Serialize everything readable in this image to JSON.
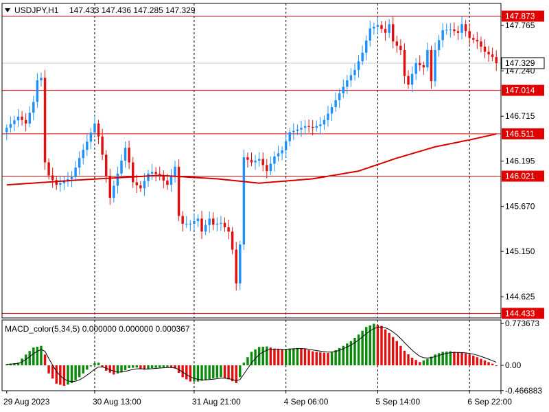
{
  "header": {
    "symbol_label": "USDJPY,H1",
    "ohlc": "147.433 147.436 147.285 147.329"
  },
  "colors": {
    "up": "#1e90ff",
    "down": "#e01010",
    "level_line": "#e00000",
    "ma": "#d40000",
    "bid_line": "#c8c8c8",
    "macd_up": "#0a8a0a",
    "macd_down": "#e01010",
    "signal": "#000000"
  },
  "chart_data": [
    {
      "type": "candlestick",
      "symbol": "USDJPY",
      "timeframe": "H1",
      "ylim": [
        144.38,
        148.02
      ],
      "y_ticks": [
        147.765,
        147.24,
        146.715,
        146.195,
        145.67,
        145.15,
        144.625
      ],
      "current_price": 147.329,
      "levels": [
        147.873,
        147.014,
        146.511,
        146.021,
        144.433
      ],
      "x_labels": [
        "29 Aug 2023",
        "30 Aug 13:00",
        "31 Aug 21:00",
        "4 Sep 06:00",
        "5 Sep 14:00",
        "6 Sep 22:00"
      ],
      "x_label_index": [
        0,
        23,
        49,
        73,
        97,
        121
      ],
      "anchors": [
        [
          0,
          146.58
        ],
        [
          3,
          146.71
        ],
        [
          5,
          146.63
        ],
        [
          7,
          146.88
        ],
        [
          8,
          147.13
        ],
        [
          9,
          147.16
        ],
        [
          10,
          146.18
        ],
        [
          11,
          146.03
        ],
        [
          13,
          145.92
        ],
        [
          15,
          145.96
        ],
        [
          17,
          146.01
        ],
        [
          19,
          146.23
        ],
        [
          21,
          146.42
        ],
        [
          23,
          146.63
        ],
        [
          24,
          146.48
        ],
        [
          25,
          146.27
        ],
        [
          27,
          145.77
        ],
        [
          29,
          146.05
        ],
        [
          31,
          146.35
        ],
        [
          32,
          146.18
        ],
        [
          33,
          145.95
        ],
        [
          35,
          145.88
        ],
        [
          37,
          146.05
        ],
        [
          38,
          146.07
        ],
        [
          40,
          146.02
        ],
        [
          42,
          145.92
        ],
        [
          44,
          146.13
        ],
        [
          45,
          145.56
        ],
        [
          46,
          145.47
        ],
        [
          48,
          145.47
        ],
        [
          50,
          145.53
        ],
        [
          51,
          145.38
        ],
        [
          53,
          145.53
        ],
        [
          54,
          145.46
        ],
        [
          56,
          145.48
        ],
        [
          58,
          145.38
        ],
        [
          59,
          145.17
        ],
        [
          60,
          144.78
        ],
        [
          61,
          145.23
        ],
        [
          62,
          146.24
        ],
        [
          64,
          146.18
        ],
        [
          66,
          146.22
        ],
        [
          68,
          146.08
        ],
        [
          70,
          146.25
        ],
        [
          72,
          146.32
        ],
        [
          74,
          146.53
        ],
        [
          76,
          146.56
        ],
        [
          78,
          146.6
        ],
        [
          80,
          146.58
        ],
        [
          82,
          146.62
        ],
        [
          83,
          146.67
        ],
        [
          85,
          146.82
        ],
        [
          87,
          146.98
        ],
        [
          89,
          147.13
        ],
        [
          91,
          147.25
        ],
        [
          93,
          147.45
        ],
        [
          95,
          147.73
        ],
        [
          97,
          147.77
        ],
        [
          99,
          147.68
        ],
        [
          100,
          147.78
        ],
        [
          101,
          147.58
        ],
        [
          103,
          147.48
        ],
        [
          104,
          147.18
        ],
        [
          105,
          147.08
        ],
        [
          107,
          147.33
        ],
        [
          109,
          147.28
        ],
        [
          110,
          147.48
        ],
        [
          111,
          147.12
        ],
        [
          112,
          147.48
        ],
        [
          114,
          147.71
        ],
        [
          116,
          147.72
        ],
        [
          118,
          147.68
        ],
        [
          119,
          147.78
        ],
        [
          121,
          147.62
        ],
        [
          123,
          147.58
        ],
        [
          125,
          147.46
        ],
        [
          127,
          147.4
        ],
        [
          128,
          147.329
        ]
      ],
      "ma": [
        [
          0,
          145.92
        ],
        [
          20,
          145.98
        ],
        [
          40,
          146.03
        ],
        [
          55,
          145.99
        ],
        [
          66,
          145.94
        ],
        [
          80,
          145.99
        ],
        [
          92,
          146.08
        ],
        [
          102,
          146.23
        ],
        [
          112,
          146.36
        ],
        [
          122,
          146.45
        ],
        [
          128,
          146.51
        ]
      ]
    },
    {
      "type": "bar",
      "name": "MACD_color(5,34,5)",
      "label": "MACD_color(5,34,5) 0.000000 0.000000 0.000367",
      "y_ticks": [
        0.773673,
        0.0,
        -0.466883
      ],
      "ylim": [
        -0.47,
        0.84
      ],
      "anchors": [
        [
          0,
          0.02
        ],
        [
          3,
          0.05
        ],
        [
          5,
          0.2
        ],
        [
          7,
          0.33
        ],
        [
          9,
          0.36
        ],
        [
          10,
          0.2
        ],
        [
          11,
          -0.15
        ],
        [
          13,
          -0.34
        ],
        [
          15,
          -0.38
        ],
        [
          17,
          -0.33
        ],
        [
          19,
          -0.22
        ],
        [
          21,
          -0.08
        ],
        [
          23,
          0.04
        ],
        [
          24,
          0.05
        ],
        [
          26,
          -0.1
        ],
        [
          28,
          -0.17
        ],
        [
          30,
          -0.13
        ],
        [
          32,
          -0.05
        ],
        [
          34,
          -0.04
        ],
        [
          36,
          -0.08
        ],
        [
          38,
          -0.05
        ],
        [
          40,
          -0.04
        ],
        [
          42,
          -0.03
        ],
        [
          44,
          -0.06
        ],
        [
          46,
          -0.22
        ],
        [
          48,
          -0.3
        ],
        [
          50,
          -0.3
        ],
        [
          52,
          -0.27
        ],
        [
          54,
          -0.24
        ],
        [
          56,
          -0.22
        ],
        [
          58,
          -0.26
        ],
        [
          60,
          -0.33
        ],
        [
          61,
          -0.22
        ],
        [
          62,
          0.05
        ],
        [
          64,
          0.25
        ],
        [
          66,
          0.34
        ],
        [
          68,
          0.35
        ],
        [
          70,
          0.31
        ],
        [
          72,
          0.29
        ],
        [
          74,
          0.31
        ],
        [
          76,
          0.32
        ],
        [
          78,
          0.3
        ],
        [
          80,
          0.26
        ],
        [
          82,
          0.24
        ],
        [
          84,
          0.23
        ],
        [
          86,
          0.28
        ],
        [
          88,
          0.36
        ],
        [
          90,
          0.45
        ],
        [
          92,
          0.57
        ],
        [
          94,
          0.71
        ],
        [
          96,
          0.77
        ],
        [
          98,
          0.73
        ],
        [
          100,
          0.6
        ],
        [
          102,
          0.45
        ],
        [
          104,
          0.27
        ],
        [
          106,
          0.14
        ],
        [
          108,
          0.06
        ],
        [
          110,
          0.12
        ],
        [
          112,
          0.2
        ],
        [
          114,
          0.25
        ],
        [
          116,
          0.26
        ],
        [
          118,
          0.24
        ],
        [
          120,
          0.22
        ],
        [
          122,
          0.18
        ],
        [
          124,
          0.12
        ],
        [
          126,
          0.06
        ],
        [
          128,
          0.0
        ]
      ]
    }
  ]
}
